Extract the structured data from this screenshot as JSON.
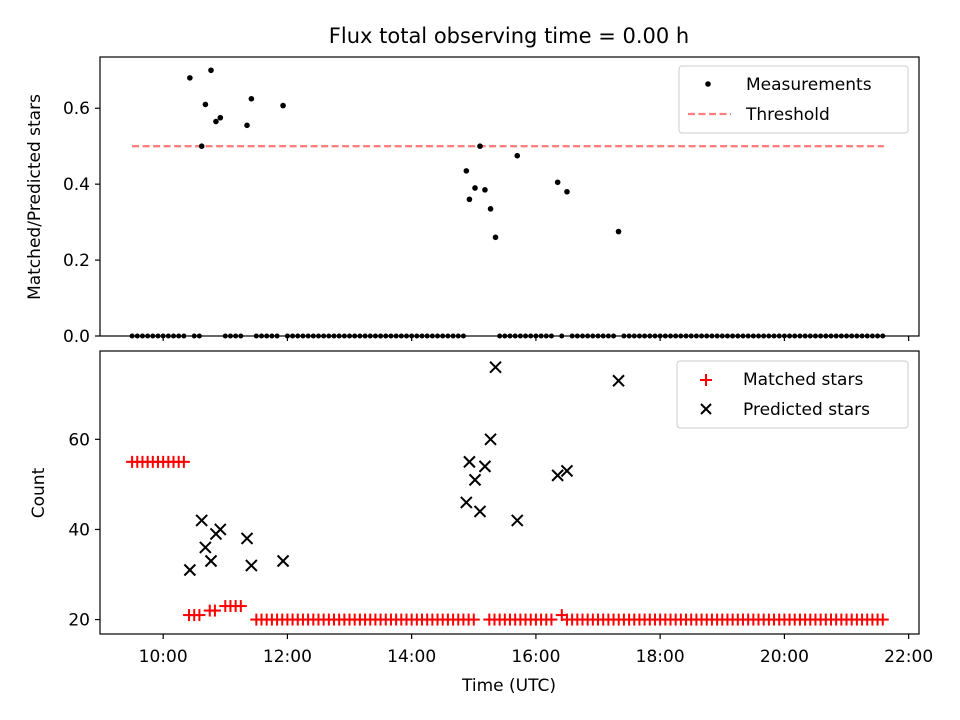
{
  "chart_data": [
    {
      "type": "scatter",
      "title": "Flux total observing time = 0.00 h",
      "xlabel": "",
      "ylabel": "Matched/Predicted stars",
      "xlim": [
        8.9833,
        22.1667
      ],
      "ylim": [
        0,
        0.735
      ],
      "yticks": [
        0.0,
        0.2,
        0.4,
        0.6
      ],
      "ytick_labels": [
        "0.0",
        "0.2",
        "0.4",
        "0.6"
      ],
      "xticks": [
        10,
        12,
        14,
        16,
        18,
        20,
        22
      ],
      "xtick_labels": [
        "",
        "",
        "",
        "",
        "",
        "",
        ""
      ],
      "legend": {
        "position": "top-right",
        "entries": [
          "Measurements",
          "Threshold"
        ]
      },
      "series": [
        {
          "name": "Measurements",
          "marker": "dot",
          "color": "#000000",
          "x": [
            10.43,
            10.62,
            10.68,
            10.77,
            10.85,
            10.92,
            11.35,
            11.42,
            11.93,
            14.88,
            14.93,
            15.02,
            15.1,
            15.18,
            15.27,
            15.35,
            15.7,
            16.35,
            16.5,
            17.33
          ],
          "y": [
            0.68,
            0.5,
            0.61,
            0.7,
            0.565,
            0.575,
            0.555,
            0.625,
            0.607,
            0.435,
            0.36,
            0.39,
            0.5,
            0.385,
            0.335,
            0.26,
            0.475,
            0.405,
            0.38,
            0.275
          ]
        },
        {
          "name": "Measurements (zero)",
          "marker": "dot",
          "color": "#000000",
          "x_range": [
            9.5,
            21.6
          ],
          "y": 0,
          "sampling_minutes": 5,
          "exclude_x": [
            10.43,
            10.62,
            10.68,
            10.77,
            10.85,
            10.92,
            11.35,
            11.42,
            11.93,
            14.88,
            14.93,
            15.02,
            15.1,
            15.18,
            15.27,
            15.35,
            15.7,
            16.35,
            16.5,
            17.33
          ]
        },
        {
          "name": "Threshold",
          "type": "line",
          "style": "dashed",
          "color": "#ff7f7f",
          "x": [
            9.5,
            21.6
          ],
          "y": [
            0.5,
            0.5
          ]
        }
      ]
    },
    {
      "type": "scatter",
      "title": "",
      "xlabel": "Time (UTC)",
      "ylabel": "Count",
      "xlim": [
        8.9833,
        22.1667
      ],
      "ylim": [
        16.8,
        79.6
      ],
      "yticks": [
        20,
        40,
        60
      ],
      "ytick_labels": [
        "20",
        "40",
        "60"
      ],
      "xticks": [
        10,
        12,
        14,
        16,
        18,
        20,
        22
      ],
      "xtick_labels": [
        "10:00",
        "12:00",
        "14:00",
        "16:00",
        "18:00",
        "20:00",
        "22:00"
      ],
      "legend": {
        "position": "top-right",
        "entries": [
          "Matched stars",
          "Predicted stars"
        ]
      },
      "series": [
        {
          "name": "Matched stars",
          "marker": "plus",
          "color": "#ff0000",
          "x_range": [
            9.5,
            21.6
          ],
          "sampling_minutes": 5,
          "values_by_range": [
            {
              "x": [
                9.5,
                10.35
              ],
              "y": 55
            },
            {
              "x": [
                10.4,
                10.65
              ],
              "y": 21
            },
            {
              "x": [
                10.7,
                10.9
              ],
              "y": 22
            },
            {
              "x": [
                10.95,
                11.3
              ],
              "y": 23
            },
            {
              "x": [
                11.35,
                11.4
              ],
              "y": 21
            },
            {
              "x": [
                11.45,
                15.05
              ],
              "y": 20
            },
            {
              "x": [
                15.1,
                15.15
              ],
              "y": 22
            },
            {
              "x": [
                15.2,
                16.3
              ],
              "y": 20
            },
            {
              "x": [
                16.35,
                16.45
              ],
              "y": 21
            },
            {
              "x": [
                16.5,
                21.6
              ],
              "y": 20
            }
          ]
        },
        {
          "name": "Predicted stars",
          "marker": "x",
          "color": "#000000",
          "x": [
            10.43,
            10.62,
            10.68,
            10.77,
            10.85,
            10.92,
            11.35,
            11.42,
            11.93,
            14.88,
            14.93,
            15.02,
            15.1,
            15.18,
            15.27,
            15.35,
            15.7,
            16.35,
            16.5,
            17.33
          ],
          "y": [
            31,
            42,
            36,
            33,
            39,
            40,
            38,
            32,
            33,
            46,
            55,
            51,
            44,
            54,
            60,
            76,
            42,
            52,
            53,
            73
          ]
        }
      ]
    }
  ]
}
